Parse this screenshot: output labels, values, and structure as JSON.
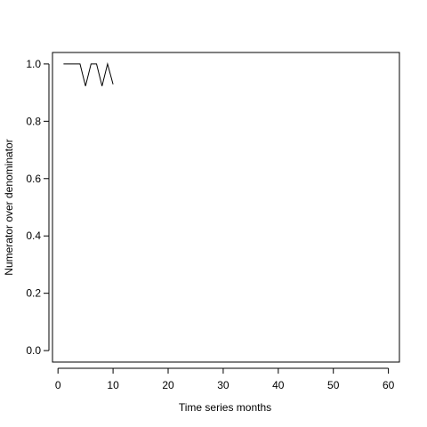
{
  "chart_data": {
    "type": "line",
    "title": "",
    "xlabel": "Time series months",
    "ylabel": "Numerator over denominator",
    "xlim": [
      -1,
      62
    ],
    "ylim": [
      -0.04,
      1.04
    ],
    "x_ticks": [
      0,
      10,
      20,
      30,
      40,
      50,
      60
    ],
    "y_ticks": [
      0.0,
      0.2,
      0.4,
      0.6,
      0.8,
      1.0
    ],
    "x_tick_labels": [
      "0",
      "10",
      "20",
      "30",
      "40",
      "50",
      "60"
    ],
    "y_tick_labels": [
      "0.0",
      "0.2",
      "0.4",
      "0.6",
      "0.8",
      "1.0"
    ],
    "grid": false,
    "legend": "none",
    "series": [
      {
        "x": [
          1,
          2,
          3,
          4,
          5,
          6,
          7,
          8,
          9,
          10
        ],
        "y": [
          1.0,
          1.0,
          1.0,
          1.0,
          0.923,
          1.0,
          1.0,
          0.923,
          1.0,
          0.929
        ],
        "color": "#000000"
      }
    ]
  }
}
